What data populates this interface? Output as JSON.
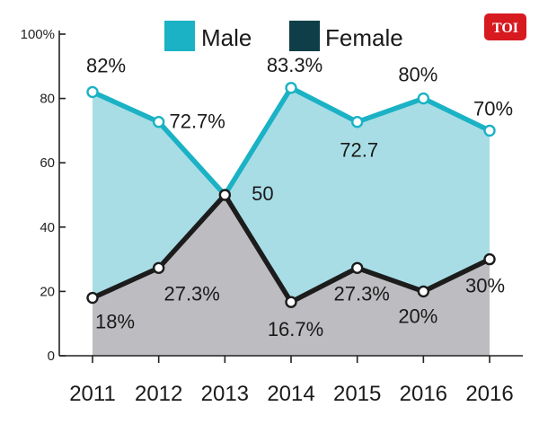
{
  "badge": {
    "text": "TOI",
    "color": "#d71920"
  },
  "chart_data": {
    "type": "area",
    "categories": [
      "2011",
      "2012",
      "2013",
      "2014",
      "2015",
      "2016",
      "2016"
    ],
    "ylim": [
      0,
      100
    ],
    "y_ticks": [
      0,
      20,
      40,
      60,
      80,
      100
    ],
    "y_tick_labels": [
      "0",
      "20",
      "40",
      "60",
      "80",
      "100%"
    ],
    "legend_position": "top",
    "grid": false,
    "series": [
      {
        "name": "Male",
        "values": [
          82,
          72.7,
          50,
          83.3,
          72.7,
          80,
          70
        ],
        "labels": [
          "82%",
          "72.7%",
          "",
          "83.3%",
          "72.7",
          "80%",
          "70%"
        ],
        "line_color": "#1ab2c4",
        "fill_color": "#a8dde6"
      },
      {
        "name": "Female",
        "values": [
          18,
          27.3,
          50,
          16.7,
          27.3,
          20,
          30
        ],
        "labels": [
          "18%",
          "27.3%",
          "50",
          "16.7%",
          "27.3%",
          "20%",
          "30%"
        ],
        "line_color": "#1c1c1c",
        "fill_color": "#bdbdc1",
        "legend_color": "#0e3f48"
      }
    ]
  }
}
